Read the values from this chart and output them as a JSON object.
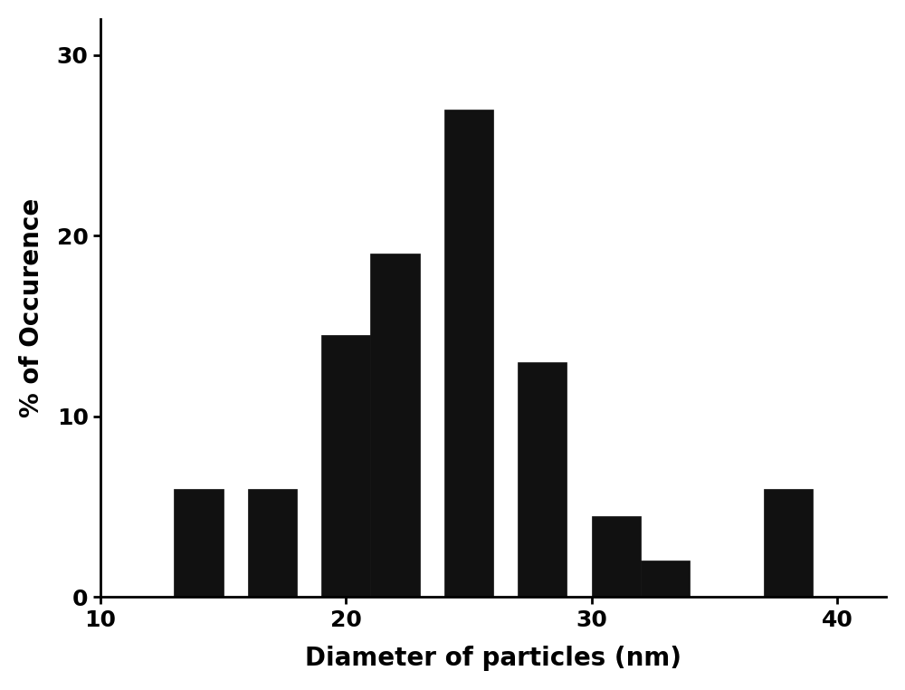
{
  "bar_positions": [
    14,
    17,
    20,
    22,
    25,
    28,
    31,
    33,
    38
  ],
  "bar_heights": [
    6.0,
    6.0,
    14.5,
    19.0,
    27.0,
    13.0,
    4.5,
    2.0,
    6.0
  ],
  "bar_width": 2.0,
  "bar_color": "#111111",
  "bar_edgecolor": "#111111",
  "xlim": [
    10,
    42
  ],
  "ylim": [
    0,
    32
  ],
  "xticks": [
    10,
    20,
    30,
    40
  ],
  "yticks": [
    0,
    10,
    20,
    30
  ],
  "xlabel": "Diameter of particles (nm)",
  "ylabel": "% of Occurence",
  "xlabel_fontsize": 20,
  "ylabel_fontsize": 20,
  "tick_fontsize": 18,
  "background_color": "#ffffff",
  "figure_color": "#ffffff"
}
